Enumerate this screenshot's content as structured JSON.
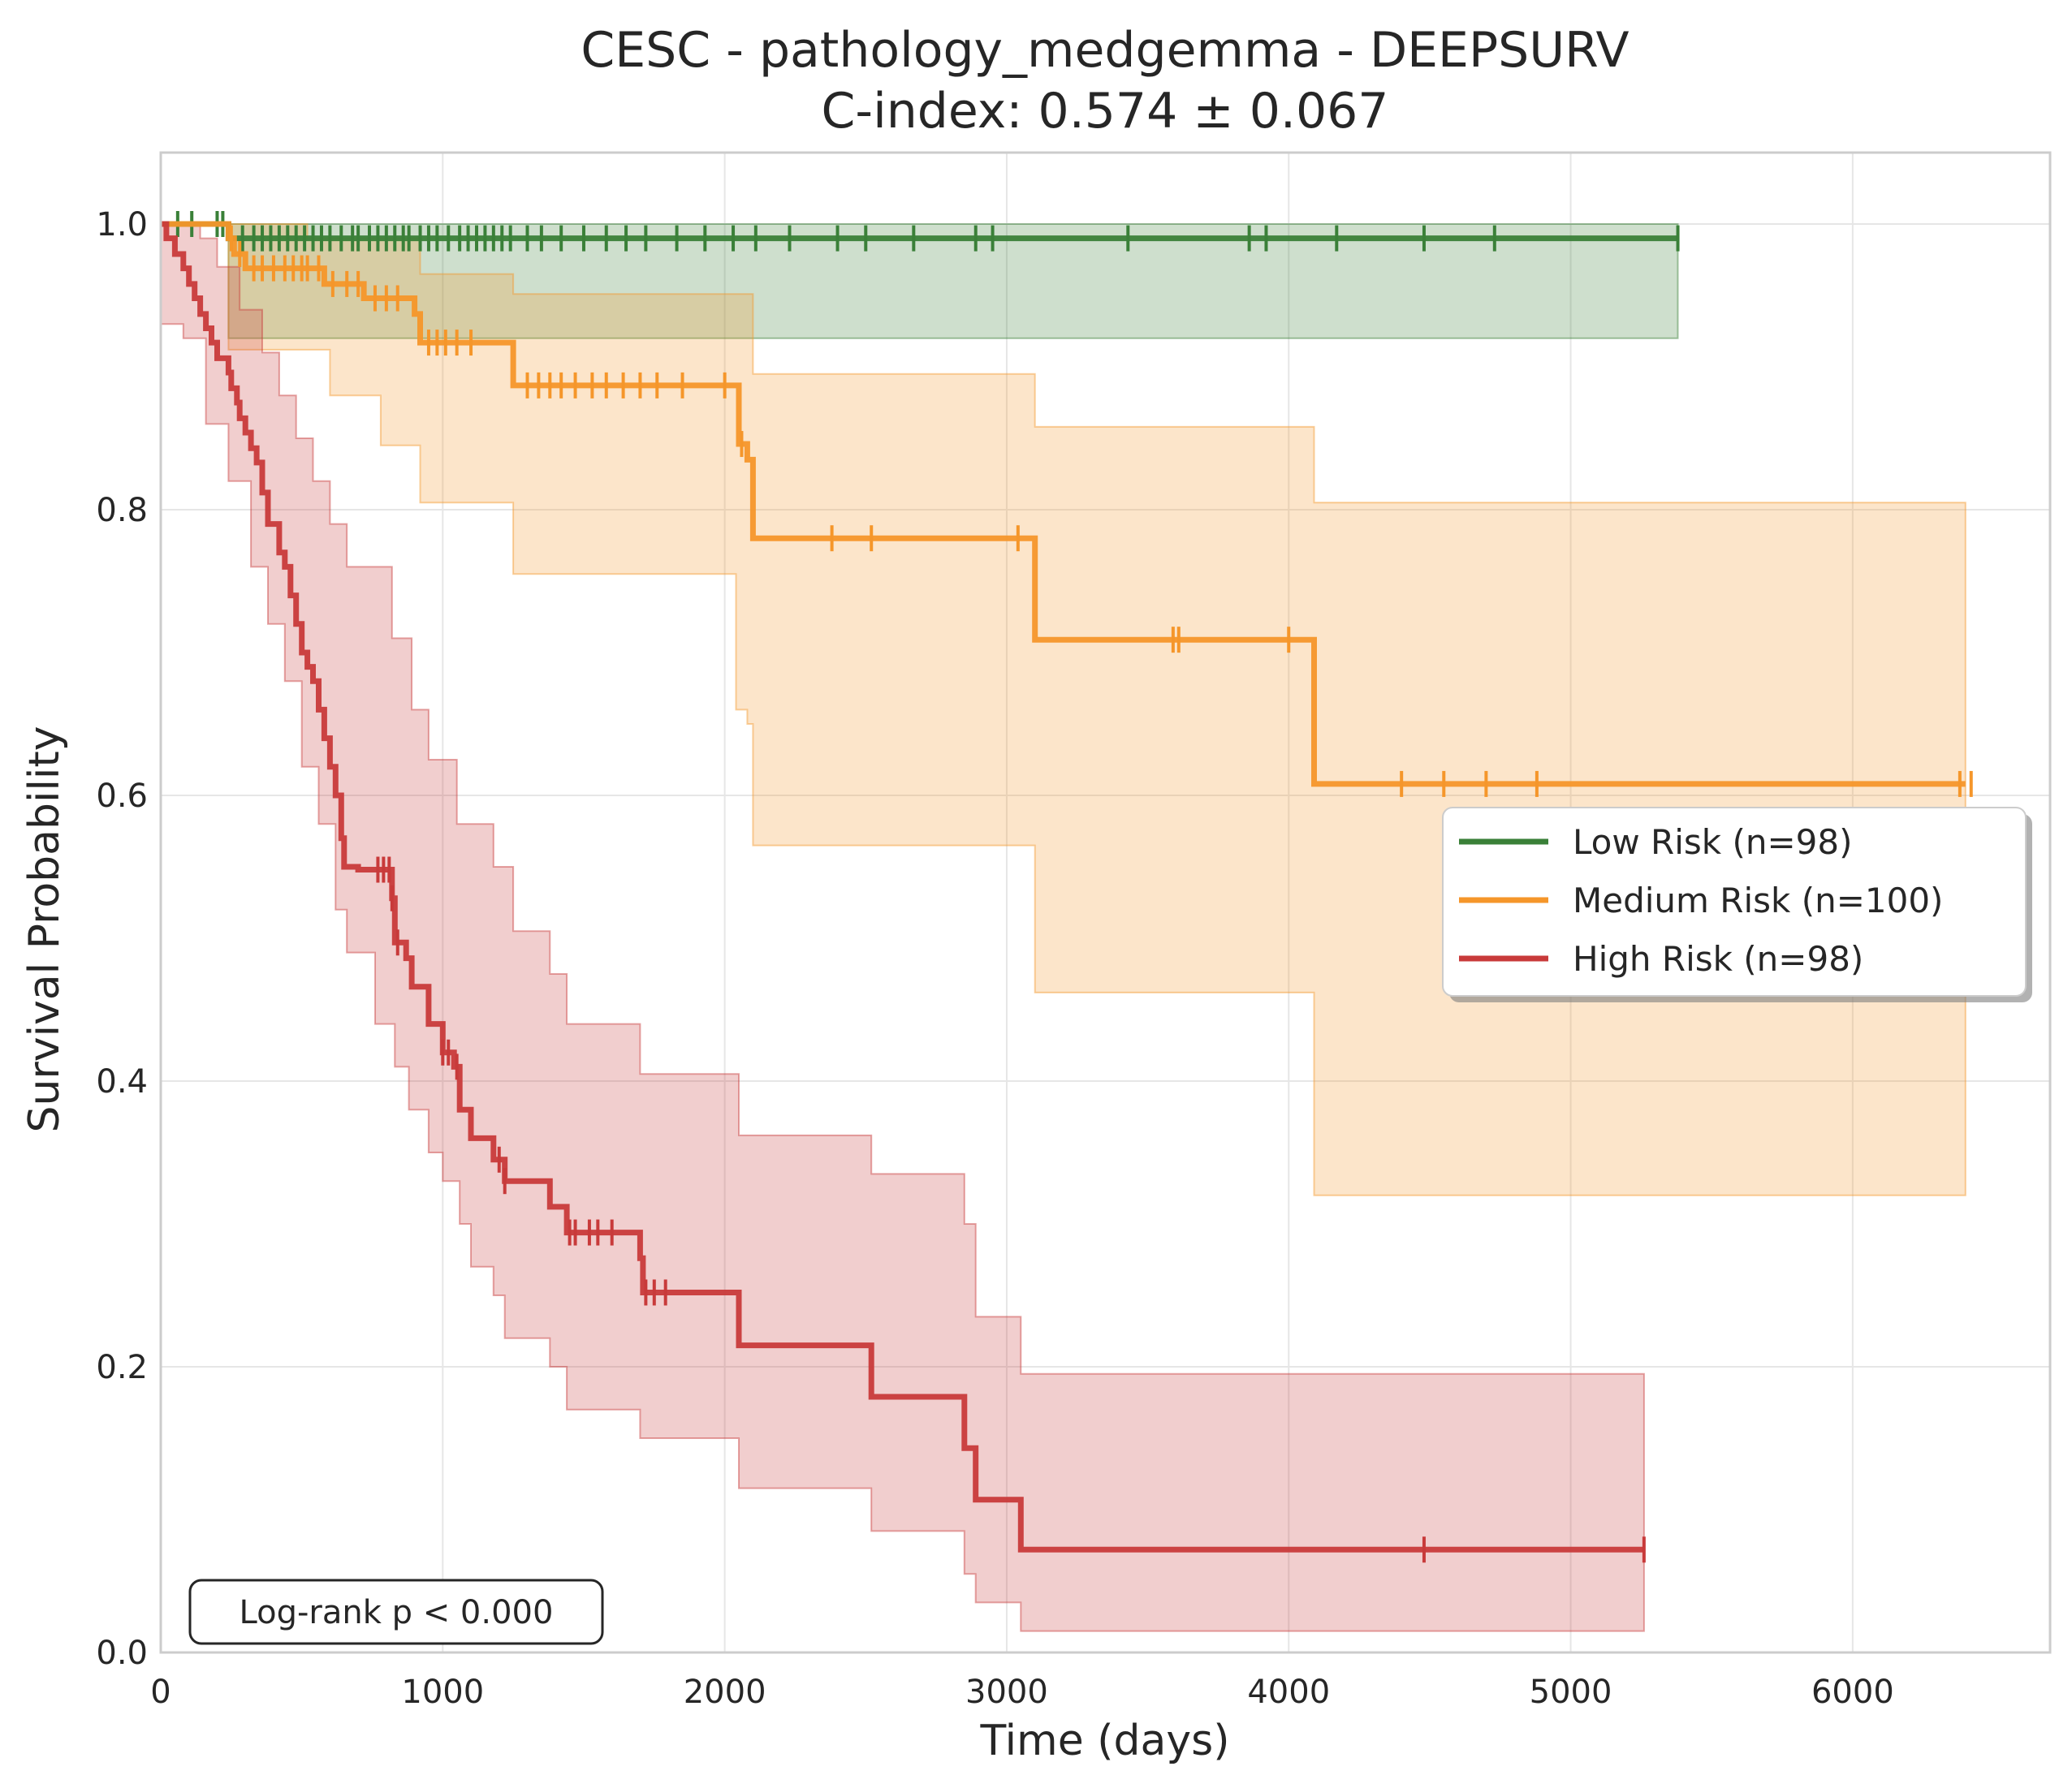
{
  "chart_data": {
    "type": "line",
    "subtype": "kaplan-meier",
    "title": "CESC - pathology_medgemma - DEEPSURV",
    "subtitle": "C-index: 0.574 ± 0.067",
    "xlabel": "Time (days)",
    "ylabel": "Survival Probability",
    "xlim": [
      0,
      6700
    ],
    "ylim": [
      0,
      1.05
    ],
    "xticks": [
      0,
      1000,
      2000,
      3000,
      4000,
      5000,
      6000
    ],
    "yticks": [
      0.0,
      0.2,
      0.4,
      0.6,
      0.8,
      1.0
    ],
    "xtick_labels": [
      "0",
      "1000",
      "2000",
      "3000",
      "4000",
      "5000",
      "6000"
    ],
    "ytick_labels": [
      "0.0",
      "0.2",
      "0.4",
      "0.6",
      "0.8",
      "1.0"
    ],
    "grid": true,
    "legend_position": "center-right",
    "annotation": "Log-rank p < 0.000",
    "series": [
      {
        "name": "Low Risk (n=98)",
        "color": "#3a8038",
        "steps": [
          [
            0,
            1.0
          ],
          [
            240,
            0.99
          ],
          [
            5380,
            0.99
          ]
        ],
        "ci_lower": [
          [
            0,
            1.0
          ],
          [
            240,
            0.92
          ],
          [
            5380,
            0.92
          ]
        ],
        "ci_upper": [
          [
            0,
            1.0
          ],
          [
            240,
            1.0
          ],
          [
            5380,
            1.0
          ]
        ],
        "censored": [
          60,
          110,
          200,
          220,
          290,
          330,
          360,
          390,
          420,
          450,
          480,
          510,
          540,
          570,
          600,
          640,
          680,
          700,
          740,
          770,
          800,
          830,
          860,
          880,
          920,
          950,
          980,
          1020,
          1060,
          1090,
          1120,
          1150,
          1180,
          1210,
          1240,
          1300,
          1350,
          1420,
          1500,
          1580,
          1650,
          1720,
          1830,
          1930,
          2030,
          2110,
          2230,
          2400,
          2500,
          2670,
          2890,
          2950,
          3430,
          3860,
          3920,
          4170,
          4480,
          4730,
          5380
        ]
      },
      {
        "name": "Medium Risk (n=100)",
        "color": "#f5962a",
        "steps": [
          [
            0,
            1.0
          ],
          [
            240,
            0.99
          ],
          [
            260,
            0.979
          ],
          [
            300,
            0.969
          ],
          [
            580,
            0.958
          ],
          [
            630,
            0.958
          ],
          [
            720,
            0.948
          ],
          [
            780,
            0.948
          ],
          [
            900,
            0.937
          ],
          [
            920,
            0.917
          ],
          [
            1250,
            0.887
          ],
          [
            2040,
            0.887
          ],
          [
            2050,
            0.846
          ],
          [
            2080,
            0.835
          ],
          [
            2100,
            0.78
          ],
          [
            3100,
            0.709
          ],
          [
            4090,
            0.608
          ],
          [
            6400,
            0.608
          ]
        ],
        "ci_lower": [
          [
            0,
            1.0
          ],
          [
            240,
            0.912
          ],
          [
            600,
            0.88
          ],
          [
            780,
            0.845
          ],
          [
            920,
            0.805
          ],
          [
            1250,
            0.755
          ],
          [
            2040,
            0.66
          ],
          [
            2080,
            0.65
          ],
          [
            2100,
            0.565
          ],
          [
            3100,
            0.462
          ],
          [
            4090,
            0.32
          ],
          [
            6400,
            0.32
          ]
        ],
        "ci_upper": [
          [
            0,
            1.0
          ],
          [
            240,
            1.0
          ],
          [
            520,
            0.99
          ],
          [
            920,
            0.965
          ],
          [
            1250,
            0.951
          ],
          [
            2100,
            0.895
          ],
          [
            3100,
            0.858
          ],
          [
            4090,
            0.805
          ],
          [
            6400,
            0.805
          ]
        ],
        "censored": [
          250,
          280,
          330,
          360,
          400,
          440,
          470,
          500,
          520,
          560,
          610,
          660,
          700,
          760,
          800,
          840,
          950,
          980,
          1010,
          1050,
          1100,
          1300,
          1340,
          1380,
          1420,
          1470,
          1530,
          1580,
          1640,
          1700,
          1760,
          1850,
          2000,
          2060,
          2380,
          2520,
          3040,
          3590,
          3610,
          4000,
          4400,
          4550,
          4700,
          4880,
          6380,
          6420
        ]
      },
      {
        "name": "High Risk (n=98)",
        "color": "#c83a3a",
        "steps": [
          [
            0,
            1.0
          ],
          [
            20,
            0.99
          ],
          [
            50,
            0.979
          ],
          [
            80,
            0.969
          ],
          [
            100,
            0.958
          ],
          [
            120,
            0.948
          ],
          [
            140,
            0.937
          ],
          [
            160,
            0.927
          ],
          [
            180,
            0.917
          ],
          [
            200,
            0.906
          ],
          [
            240,
            0.896
          ],
          [
            250,
            0.885
          ],
          [
            270,
            0.875
          ],
          [
            280,
            0.864
          ],
          [
            300,
            0.854
          ],
          [
            320,
            0.843
          ],
          [
            340,
            0.833
          ],
          [
            360,
            0.812
          ],
          [
            380,
            0.79
          ],
          [
            420,
            0.77
          ],
          [
            440,
            0.76
          ],
          [
            460,
            0.74
          ],
          [
            480,
            0.72
          ],
          [
            500,
            0.7
          ],
          [
            520,
            0.69
          ],
          [
            540,
            0.68
          ],
          [
            560,
            0.66
          ],
          [
            580,
            0.64
          ],
          [
            600,
            0.62
          ],
          [
            620,
            0.6
          ],
          [
            640,
            0.57
          ],
          [
            650,
            0.55
          ],
          [
            700,
            0.548
          ],
          [
            820,
            0.528
          ],
          [
            830,
            0.497
          ],
          [
            870,
            0.486
          ],
          [
            890,
            0.466
          ],
          [
            940,
            0.466
          ],
          [
            950,
            0.44
          ],
          [
            1000,
            0.42
          ],
          [
            1040,
            0.41
          ],
          [
            1060,
            0.38
          ],
          [
            1100,
            0.36
          ],
          [
            1180,
            0.345
          ],
          [
            1220,
            0.33
          ],
          [
            1250,
            0.33
          ],
          [
            1380,
            0.312
          ],
          [
            1440,
            0.294
          ],
          [
            1700,
            0.276
          ],
          [
            1710,
            0.252
          ],
          [
            2050,
            0.215
          ],
          [
            2520,
            0.179
          ],
          [
            2850,
            0.143
          ],
          [
            2890,
            0.107
          ],
          [
            3050,
            0.072
          ],
          [
            5260,
            0.072
          ]
        ],
        "ci_lower": [
          [
            0,
            0.93
          ],
          [
            80,
            0.92
          ],
          [
            160,
            0.86
          ],
          [
            240,
            0.82
          ],
          [
            320,
            0.76
          ],
          [
            380,
            0.72
          ],
          [
            440,
            0.68
          ],
          [
            500,
            0.62
          ],
          [
            560,
            0.58
          ],
          [
            620,
            0.52
          ],
          [
            660,
            0.49
          ],
          [
            760,
            0.44
          ],
          [
            830,
            0.41
          ],
          [
            880,
            0.38
          ],
          [
            950,
            0.35
          ],
          [
            1000,
            0.33
          ],
          [
            1060,
            0.3
          ],
          [
            1100,
            0.27
          ],
          [
            1180,
            0.25
          ],
          [
            1220,
            0.22
          ],
          [
            1380,
            0.2
          ],
          [
            1440,
            0.17
          ],
          [
            1700,
            0.15
          ],
          [
            2050,
            0.115
          ],
          [
            2520,
            0.085
          ],
          [
            2850,
            0.055
          ],
          [
            2890,
            0.035
          ],
          [
            3050,
            0.015
          ],
          [
            5260,
            0.015
          ]
        ],
        "ci_upper": [
          [
            0,
            1.0
          ],
          [
            140,
            0.99
          ],
          [
            200,
            0.97
          ],
          [
            280,
            0.94
          ],
          [
            360,
            0.91
          ],
          [
            420,
            0.88
          ],
          [
            480,
            0.85
          ],
          [
            540,
            0.82
          ],
          [
            600,
            0.79
          ],
          [
            660,
            0.76
          ],
          [
            820,
            0.71
          ],
          [
            890,
            0.66
          ],
          [
            950,
            0.625
          ],
          [
            1050,
            0.58
          ],
          [
            1180,
            0.55
          ],
          [
            1250,
            0.505
          ],
          [
            1380,
            0.475
          ],
          [
            1440,
            0.44
          ],
          [
            1700,
            0.405
          ],
          [
            2050,
            0.362
          ],
          [
            2520,
            0.335
          ],
          [
            2850,
            0.3
          ],
          [
            2890,
            0.235
          ],
          [
            3050,
            0.195
          ],
          [
            5260,
            0.195
          ]
        ],
        "censored": [
          770,
          790,
          810,
          820,
          840,
          1000,
          1020,
          1050,
          1200,
          1220,
          1450,
          1470,
          1520,
          1550,
          1600,
          1720,
          1750,
          1790,
          4480,
          5260
        ]
      }
    ]
  }
}
